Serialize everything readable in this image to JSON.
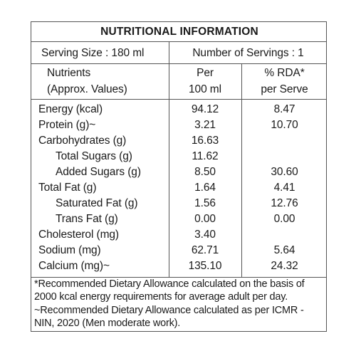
{
  "title": "NUTRITIONAL INFORMATION",
  "serving_size": "Serving Size : 180 ml",
  "servings": "Number of Servings : 1",
  "headers": {
    "nutrients_1": "Nutrients",
    "nutrients_2": "(Approx. Values)",
    "per_1": "Per",
    "per_2": "100 ml",
    "rda_1": "% RDA*",
    "rda_2": "per Serve"
  },
  "rows": [
    {
      "name": "Energy (kcal)",
      "per100": "94.12",
      "rda": "8.47"
    },
    {
      "name": "Protein (g)~",
      "per100": "3.21",
      "rda": "10.70"
    },
    {
      "name": "Carbohydrates (g)",
      "per100": "16.63",
      "rda": ""
    },
    {
      "name": "Total Sugars (g)",
      "per100": "11.62",
      "rda": ""
    },
    {
      "name": "Added Sugars (g)",
      "per100": "8.50",
      "rda": "30.60"
    },
    {
      "name": "Total Fat (g)",
      "per100": "1.64",
      "rda": "4.41"
    },
    {
      "name": "Saturated Fat (g)",
      "per100": "1.56",
      "rda": "12.76"
    },
    {
      "name": "Trans Fat (g)",
      "per100": "0.00",
      "rda": "0.00"
    },
    {
      "name": "Cholesterol (mg)",
      "per100": "3.40",
      "rda": ""
    },
    {
      "name": "Sodium (mg)",
      "per100": "62.71",
      "rda": "5.64"
    },
    {
      "name": "Calcium (mg)~",
      "per100": "135.10",
      "rda": "24.32"
    }
  ],
  "footnotes": [
    "*Recommended Dietary Allowance calculated on the basis of 2000 kcal energy requirements for average adult per day.",
    "~Recommended Dietary Allowance calculated as per ICMR - NIN, 2020 (Men moderate work)."
  ]
}
